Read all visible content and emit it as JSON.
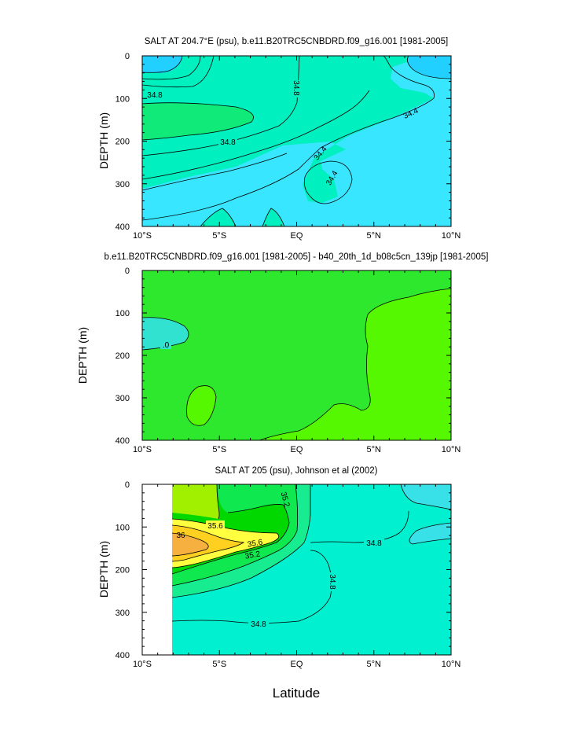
{
  "chart_data": [
    {
      "type": "contour",
      "title": "SALT AT 204.7°E (psu), b.e11.B20TRC5CNBDRD.f09_g16.001 [1981-2005]",
      "xlabel": "",
      "ylabel": "DEPTH (m)",
      "xlim": [
        -10,
        10
      ],
      "ylim": [
        400,
        0
      ],
      "x_ticks": [
        "10°S",
        "5°S",
        "EQ",
        "5°N",
        "10°N"
      ],
      "y_ticks": [
        "0",
        "100",
        "200",
        "300",
        "400"
      ],
      "contour_labels": [
        "34.8",
        "34.8",
        "34.8",
        "34.4",
        "34.4",
        "34.4"
      ],
      "fill_colors": {
        "low": "#38e6ff",
        "mid": "#00f0c0",
        "high": "#10ea78",
        "deep": "#21d0ff"
      }
    },
    {
      "type": "contour",
      "title": "b.e11.B20TRC5CNBDRD.f09_g16.001 [1981-2005] - b40_20th_1d_b08c5cn_139jp [1981-2005]",
      "xlabel": "",
      "ylabel": "DEPTH (m)",
      "xlim": [
        -10,
        10
      ],
      "ylim": [
        400,
        0
      ],
      "x_ticks": [
        "10°S",
        "5°S",
        "EQ",
        "5°N",
        "10°N"
      ],
      "y_ticks": [
        "0",
        "100",
        "200",
        "300",
        "400"
      ],
      "contour_labels": [
        ".0"
      ],
      "fill_colors": {
        "base": "#2ee82e",
        "positive": "#55f800",
        "negative": "#32e2d0"
      }
    },
    {
      "type": "contour",
      "title": "SALT AT 205 (psu), Johnson et al (2002)",
      "xlabel": "Latitude",
      "ylabel": "DEPTH (m)",
      "xlim": [
        -10,
        10
      ],
      "ylim": [
        400,
        0
      ],
      "x_ticks": [
        "10°S",
        "5°S",
        "EQ",
        "5°N",
        "10°N"
      ],
      "y_ticks": [
        "0",
        "100",
        "200",
        "300",
        "400"
      ],
      "contour_labels": [
        "35.2",
        "35.6",
        "36",
        "35.6",
        "35.2",
        "34.8",
        "34.8",
        "34.8"
      ],
      "fill_colors": {
        "c348": "#00f0d0",
        "c35": "#18ec90",
        "c352": "#10e850",
        "c354": "#00d800",
        "c356": "#a0f000",
        "c358": "#ffff40",
        "c36": "#ffd020",
        "c362": "#f6b040",
        "c344": "#38e0e8"
      }
    }
  ]
}
